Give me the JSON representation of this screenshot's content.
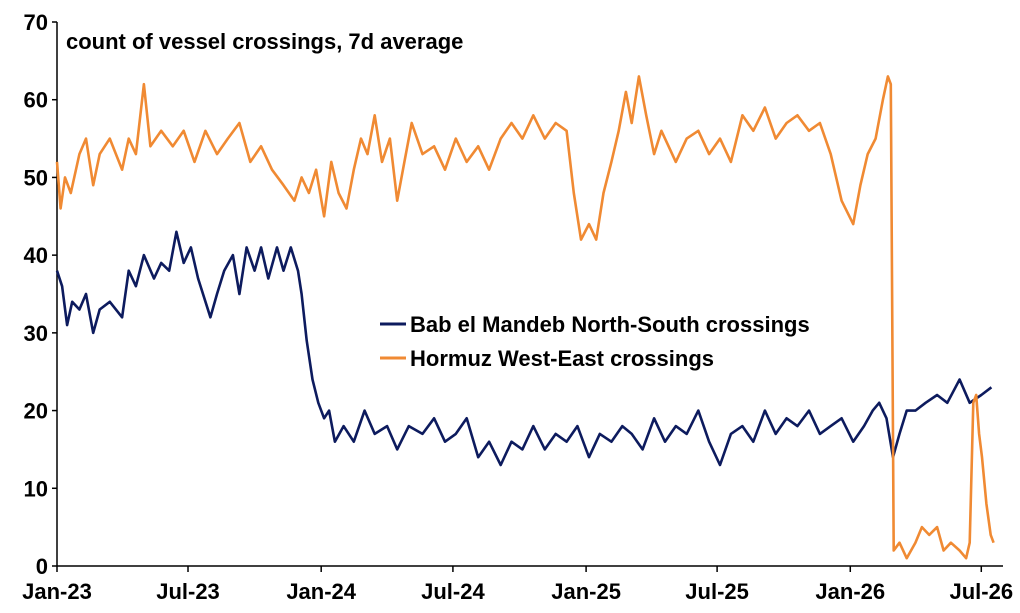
{
  "chart_data": {
    "type": "line",
    "title": "count of vessel crossings, 7d average",
    "xlabel": "",
    "ylabel": "",
    "ylim": [
      0,
      70
    ],
    "yticks": [
      0,
      10,
      20,
      30,
      40,
      50,
      60,
      70
    ],
    "xlim": [
      "2023-01-01",
      "2026-07-31"
    ],
    "xticks": [
      {
        "date": "2023-01-01",
        "label": "Jan-23"
      },
      {
        "date": "2023-07-01",
        "label": "Jul-23"
      },
      {
        "date": "2024-01-01",
        "label": "Jan-24"
      },
      {
        "date": "2024-07-01",
        "label": "Jul-24"
      },
      {
        "date": "2025-01-01",
        "label": "Jan-25"
      },
      {
        "date": "2025-07-01",
        "label": "Jul-25"
      },
      {
        "date": "2026-01-01",
        "label": "Jan-26"
      },
      {
        "date": "2026-07-01",
        "label": "Jul-26"
      }
    ],
    "grid": false,
    "legend_position": "center-right",
    "series": [
      {
        "name": "Bab el Mandeb North-South crossings",
        "color": "#0d1b5e",
        "points": [
          [
            "2023-01-01",
            38
          ],
          [
            "2023-01-08",
            36
          ],
          [
            "2023-01-15",
            31
          ],
          [
            "2023-01-22",
            34
          ],
          [
            "2023-02-01",
            33
          ],
          [
            "2023-02-10",
            35
          ],
          [
            "2023-02-20",
            30
          ],
          [
            "2023-03-01",
            33
          ],
          [
            "2023-03-15",
            34
          ],
          [
            "2023-04-01",
            32
          ],
          [
            "2023-04-10",
            38
          ],
          [
            "2023-04-20",
            36
          ],
          [
            "2023-05-01",
            40
          ],
          [
            "2023-05-15",
            37
          ],
          [
            "2023-05-25",
            39
          ],
          [
            "2023-06-05",
            38
          ],
          [
            "2023-06-15",
            43
          ],
          [
            "2023-06-25",
            39
          ],
          [
            "2023-07-05",
            41
          ],
          [
            "2023-07-15",
            37
          ],
          [
            "2023-08-01",
            32
          ],
          [
            "2023-08-10",
            35
          ],
          [
            "2023-08-20",
            38
          ],
          [
            "2023-09-01",
            40
          ],
          [
            "2023-09-10",
            35
          ],
          [
            "2023-09-20",
            41
          ],
          [
            "2023-10-01",
            38
          ],
          [
            "2023-10-10",
            41
          ],
          [
            "2023-10-20",
            37
          ],
          [
            "2023-11-01",
            41
          ],
          [
            "2023-11-10",
            38
          ],
          [
            "2023-11-20",
            41
          ],
          [
            "2023-11-30",
            38
          ],
          [
            "2023-12-05",
            35
          ],
          [
            "2023-12-12",
            29
          ],
          [
            "2023-12-20",
            24
          ],
          [
            "2023-12-28",
            21
          ],
          [
            "2024-01-05",
            19
          ],
          [
            "2024-01-12",
            20
          ],
          [
            "2024-01-20",
            16
          ],
          [
            "2024-02-01",
            18
          ],
          [
            "2024-02-15",
            16
          ],
          [
            "2024-03-01",
            20
          ],
          [
            "2024-03-15",
            17
          ],
          [
            "2024-04-01",
            18
          ],
          [
            "2024-04-15",
            15
          ],
          [
            "2024-05-01",
            18
          ],
          [
            "2024-05-20",
            17
          ],
          [
            "2024-06-05",
            19
          ],
          [
            "2024-06-20",
            16
          ],
          [
            "2024-07-05",
            17
          ],
          [
            "2024-07-20",
            19
          ],
          [
            "2024-08-05",
            14
          ],
          [
            "2024-08-20",
            16
          ],
          [
            "2024-09-05",
            13
          ],
          [
            "2024-09-20",
            16
          ],
          [
            "2024-10-05",
            15
          ],
          [
            "2024-10-20",
            18
          ],
          [
            "2024-11-05",
            15
          ],
          [
            "2024-11-20",
            17
          ],
          [
            "2024-12-05",
            16
          ],
          [
            "2024-12-20",
            18
          ],
          [
            "2025-01-05",
            14
          ],
          [
            "2025-01-20",
            17
          ],
          [
            "2025-02-05",
            16
          ],
          [
            "2025-02-20",
            18
          ],
          [
            "2025-03-05",
            17
          ],
          [
            "2025-03-20",
            15
          ],
          [
            "2025-04-05",
            19
          ],
          [
            "2025-04-20",
            16
          ],
          [
            "2025-05-05",
            18
          ],
          [
            "2025-05-20",
            17
          ],
          [
            "2025-06-05",
            20
          ],
          [
            "2025-06-20",
            16
          ],
          [
            "2025-07-05",
            13
          ],
          [
            "2025-07-20",
            17
          ],
          [
            "2025-08-05",
            18
          ],
          [
            "2025-08-20",
            16
          ],
          [
            "2025-09-05",
            20
          ],
          [
            "2025-09-20",
            17
          ],
          [
            "2025-10-05",
            19
          ],
          [
            "2025-10-20",
            18
          ],
          [
            "2025-11-05",
            20
          ],
          [
            "2025-11-20",
            17
          ],
          [
            "2025-12-05",
            18
          ],
          [
            "2025-12-20",
            19
          ],
          [
            "2026-01-05",
            16
          ],
          [
            "2026-01-20",
            18
          ],
          [
            "2026-02-01",
            20
          ],
          [
            "2026-02-10",
            21
          ],
          [
            "2026-02-20",
            19
          ],
          [
            "2026-03-01",
            14
          ],
          [
            "2026-03-10",
            17
          ],
          [
            "2026-03-20",
            20
          ],
          [
            "2026-04-01",
            20
          ],
          [
            "2026-04-15",
            21
          ],
          [
            "2026-05-01",
            22
          ],
          [
            "2026-05-15",
            21
          ],
          [
            "2026-06-01",
            24
          ],
          [
            "2026-06-15",
            21
          ],
          [
            "2026-07-01",
            22
          ],
          [
            "2026-07-15",
            23
          ]
        ]
      },
      {
        "name": "Hormuz West-East crossings",
        "color": "#f08a33",
        "points": [
          [
            "2023-01-01",
            52
          ],
          [
            "2023-01-06",
            46
          ],
          [
            "2023-01-12",
            50
          ],
          [
            "2023-01-20",
            48
          ],
          [
            "2023-02-01",
            53
          ],
          [
            "2023-02-10",
            55
          ],
          [
            "2023-02-20",
            49
          ],
          [
            "2023-03-01",
            53
          ],
          [
            "2023-03-15",
            55
          ],
          [
            "2023-04-01",
            51
          ],
          [
            "2023-04-10",
            55
          ],
          [
            "2023-04-20",
            53
          ],
          [
            "2023-05-01",
            62
          ],
          [
            "2023-05-10",
            54
          ],
          [
            "2023-05-25",
            56
          ],
          [
            "2023-06-10",
            54
          ],
          [
            "2023-06-25",
            56
          ],
          [
            "2023-07-10",
            52
          ],
          [
            "2023-07-25",
            56
          ],
          [
            "2023-08-10",
            53
          ],
          [
            "2023-08-25",
            55
          ],
          [
            "2023-09-10",
            57
          ],
          [
            "2023-09-25",
            52
          ],
          [
            "2023-10-10",
            54
          ],
          [
            "2023-10-25",
            51
          ],
          [
            "2023-11-10",
            49
          ],
          [
            "2023-11-25",
            47
          ],
          [
            "2023-12-05",
            50
          ],
          [
            "2023-12-15",
            48
          ],
          [
            "2023-12-25",
            51
          ],
          [
            "2024-01-05",
            45
          ],
          [
            "2024-01-15",
            52
          ],
          [
            "2024-01-25",
            48
          ],
          [
            "2024-02-05",
            46
          ],
          [
            "2024-02-15",
            51
          ],
          [
            "2024-02-25",
            55
          ],
          [
            "2024-03-05",
            53
          ],
          [
            "2024-03-15",
            58
          ],
          [
            "2024-03-25",
            52
          ],
          [
            "2024-04-05",
            55
          ],
          [
            "2024-04-15",
            47
          ],
          [
            "2024-04-25",
            52
          ],
          [
            "2024-05-05",
            57
          ],
          [
            "2024-05-20",
            53
          ],
          [
            "2024-06-05",
            54
          ],
          [
            "2024-06-20",
            51
          ],
          [
            "2024-07-05",
            55
          ],
          [
            "2024-07-20",
            52
          ],
          [
            "2024-08-05",
            54
          ],
          [
            "2024-08-20",
            51
          ],
          [
            "2024-09-05",
            55
          ],
          [
            "2024-09-20",
            57
          ],
          [
            "2024-10-05",
            55
          ],
          [
            "2024-10-20",
            58
          ],
          [
            "2024-11-05",
            55
          ],
          [
            "2024-11-20",
            57
          ],
          [
            "2024-12-05",
            56
          ],
          [
            "2024-12-15",
            48
          ],
          [
            "2024-12-25",
            42
          ],
          [
            "2025-01-05",
            44
          ],
          [
            "2025-01-15",
            42
          ],
          [
            "2025-01-25",
            48
          ],
          [
            "2025-02-05",
            52
          ],
          [
            "2025-02-15",
            56
          ],
          [
            "2025-02-25",
            61
          ],
          [
            "2025-03-05",
            57
          ],
          [
            "2025-03-15",
            63
          ],
          [
            "2025-03-25",
            58
          ],
          [
            "2025-04-05",
            53
          ],
          [
            "2025-04-15",
            56
          ],
          [
            "2025-04-25",
            54
          ],
          [
            "2025-05-05",
            52
          ],
          [
            "2025-05-20",
            55
          ],
          [
            "2025-06-05",
            56
          ],
          [
            "2025-06-20",
            53
          ],
          [
            "2025-07-05",
            55
          ],
          [
            "2025-07-20",
            52
          ],
          [
            "2025-08-05",
            58
          ],
          [
            "2025-08-20",
            56
          ],
          [
            "2025-09-05",
            59
          ],
          [
            "2025-09-20",
            55
          ],
          [
            "2025-10-05",
            57
          ],
          [
            "2025-10-20",
            58
          ],
          [
            "2025-11-05",
            56
          ],
          [
            "2025-11-20",
            57
          ],
          [
            "2025-12-05",
            53
          ],
          [
            "2025-12-20",
            47
          ],
          [
            "2026-01-05",
            44
          ],
          [
            "2026-01-15",
            49
          ],
          [
            "2026-01-25",
            53
          ],
          [
            "2026-02-05",
            55
          ],
          [
            "2026-02-15",
            60
          ],
          [
            "2026-02-22",
            63
          ],
          [
            "2026-02-26",
            62
          ],
          [
            "2026-03-02",
            2
          ],
          [
            "2026-03-10",
            3
          ],
          [
            "2026-03-20",
            1
          ],
          [
            "2026-04-01",
            3
          ],
          [
            "2026-04-10",
            5
          ],
          [
            "2026-04-20",
            4
          ],
          [
            "2026-05-01",
            5
          ],
          [
            "2026-05-10",
            2
          ],
          [
            "2026-05-20",
            3
          ],
          [
            "2026-06-01",
            2
          ],
          [
            "2026-06-10",
            1
          ],
          [
            "2026-06-15",
            3
          ],
          [
            "2026-06-20",
            21
          ],
          [
            "2026-06-24",
            22
          ],
          [
            "2026-06-28",
            17
          ],
          [
            "2026-07-02",
            14
          ],
          [
            "2026-07-08",
            8
          ],
          [
            "2026-07-14",
            4
          ],
          [
            "2026-07-18",
            3
          ]
        ]
      }
    ]
  }
}
